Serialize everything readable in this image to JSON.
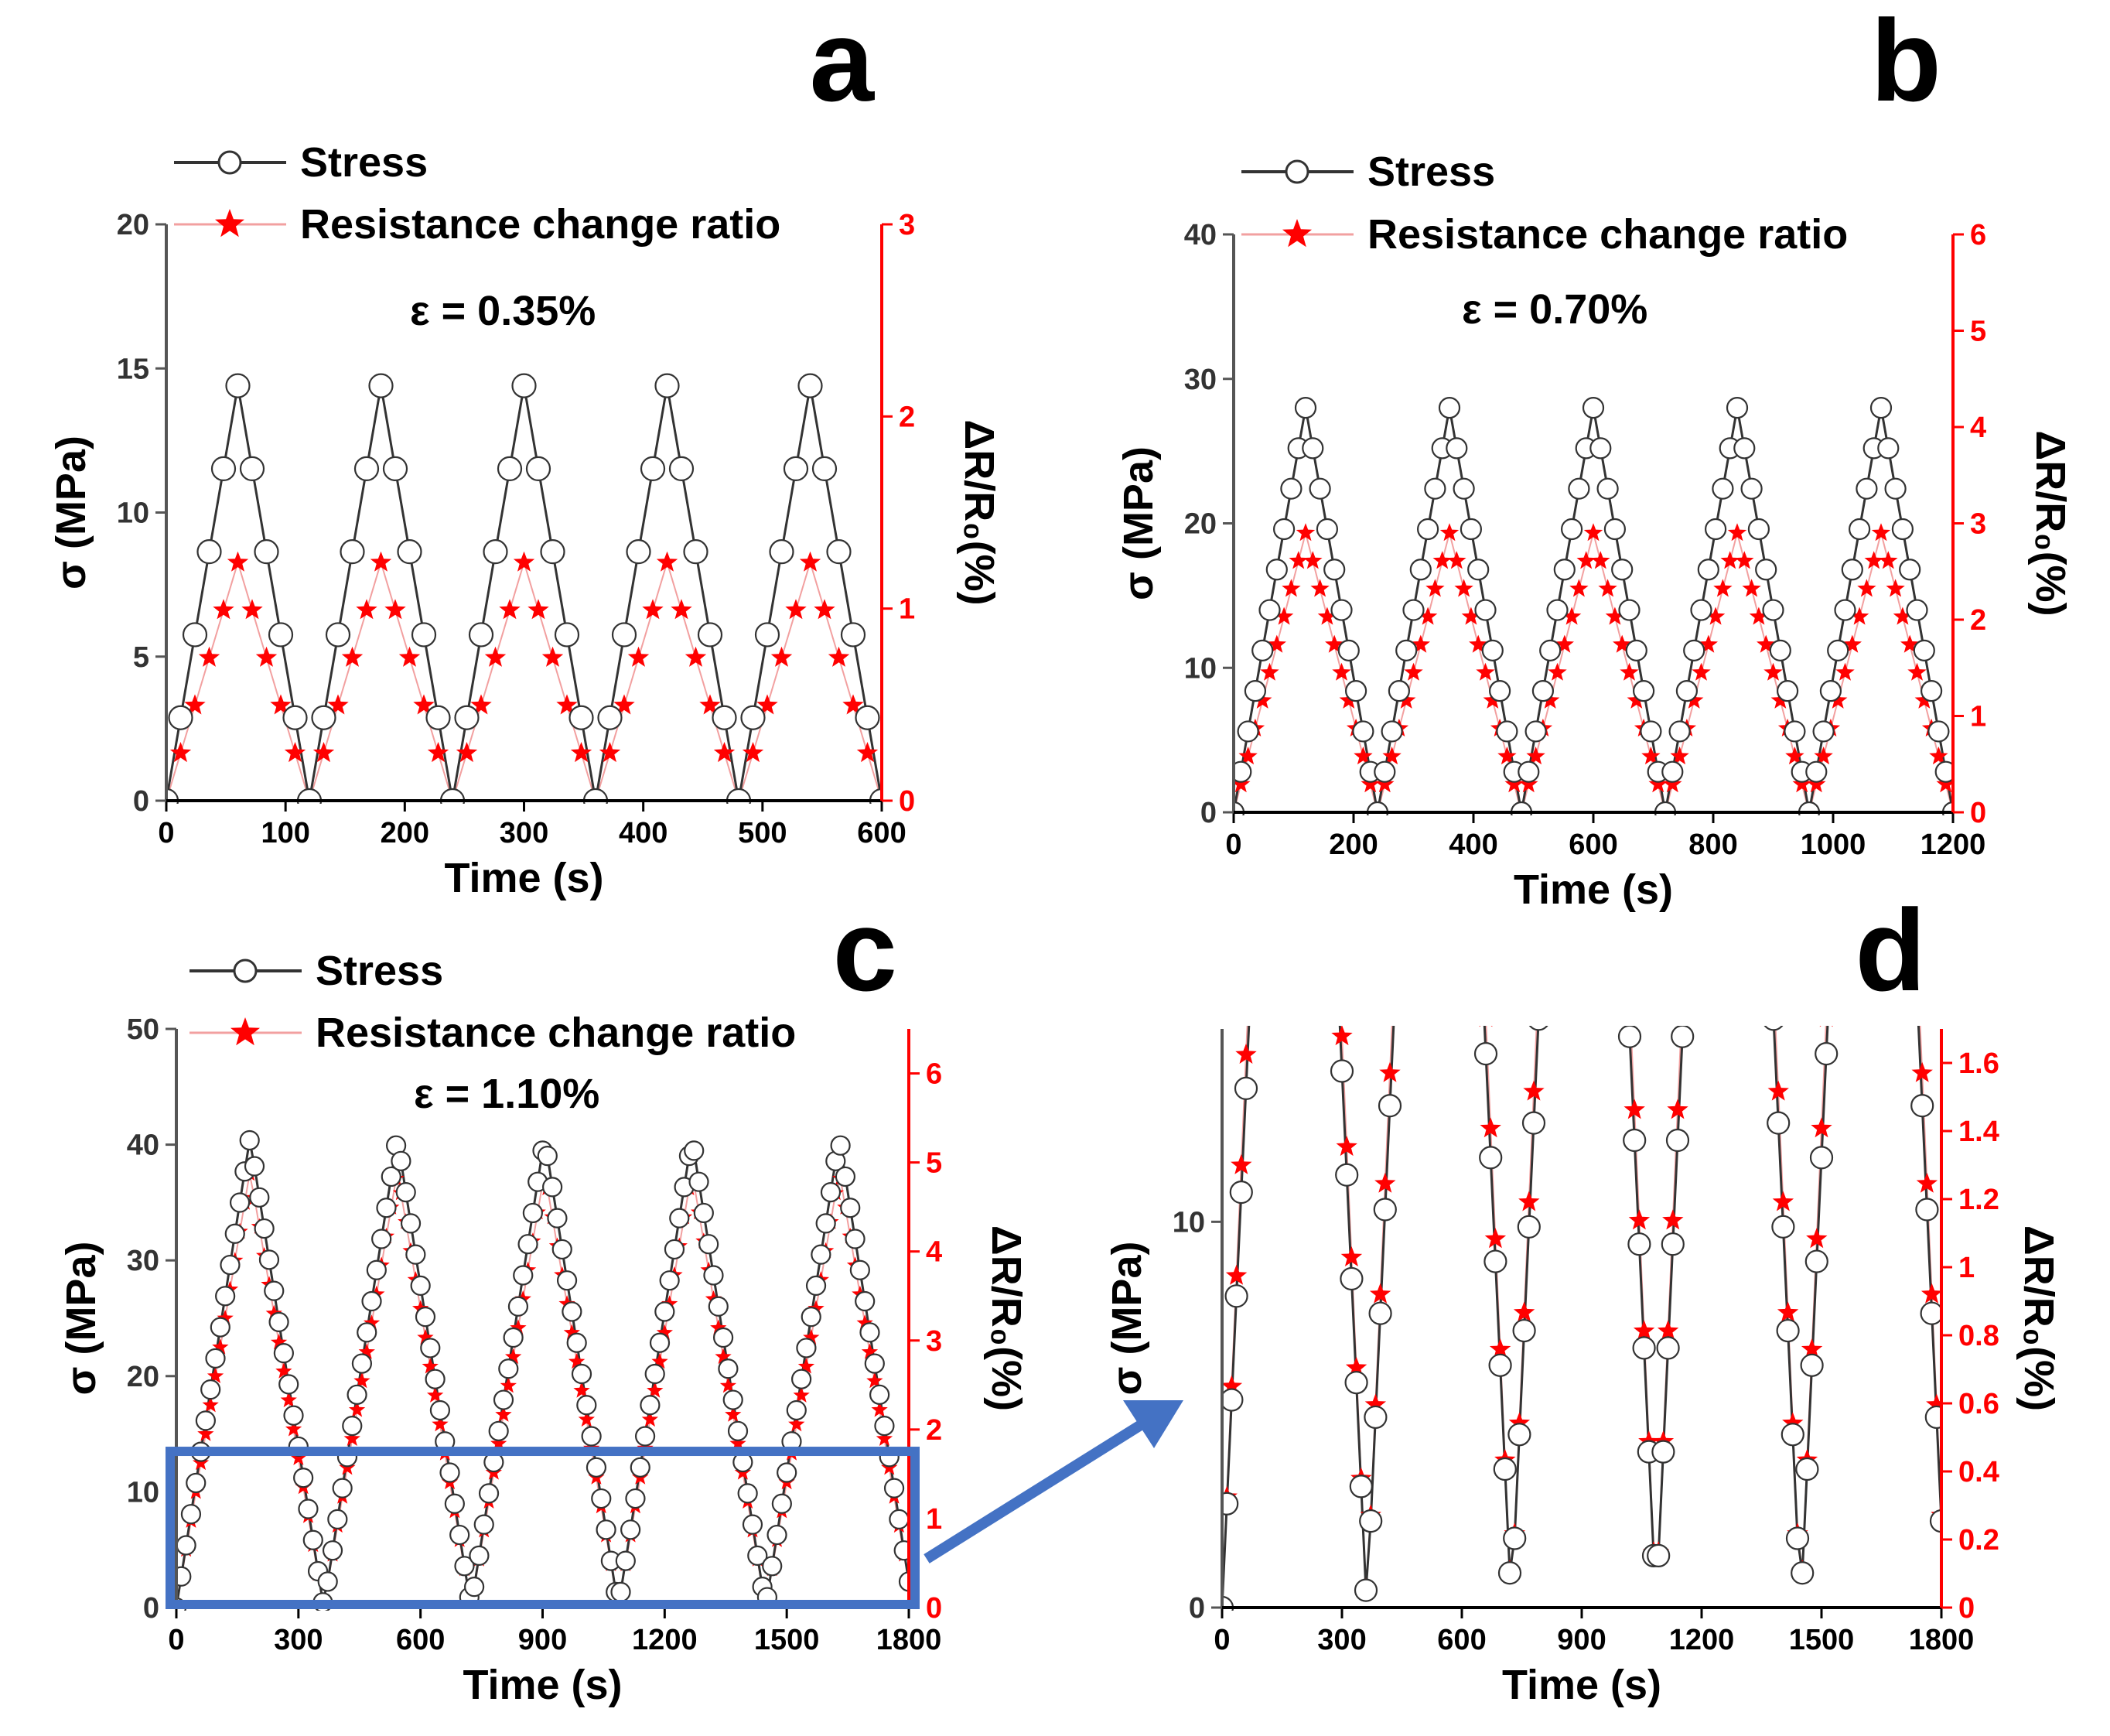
{
  "figure": {
    "arrow_color": "#4472c4",
    "stress_color": "#333333",
    "resistance_color": "#ff0000"
  },
  "chart_data": [
    {
      "panel": "a",
      "type": "line",
      "legend": [
        "Stress",
        "Resistance change ratio"
      ],
      "annotation": "ε = 0.35%",
      "xlabel": "Time (s)",
      "ylabel": "σ (MPa)",
      "y2label": "ΔR/R₀(%)",
      "xlim": [
        0,
        600
      ],
      "ylim": [
        0,
        20
      ],
      "y2lim": [
        0,
        3
      ],
      "xticks": [
        0,
        100,
        200,
        300,
        400,
        500,
        600
      ],
      "yticks": [
        0,
        5,
        10,
        15,
        20
      ],
      "y2ticks": [
        0,
        1,
        2,
        3
      ],
      "cycles": 5,
      "period": 120,
      "start": 0,
      "stress_peak": 14.4,
      "resistance_peak": 1.24,
      "sample_step": 12
    },
    {
      "panel": "b",
      "type": "line",
      "legend": [
        "Stress",
        "Resistance change ratio"
      ],
      "annotation": "ε = 0.70%",
      "xlabel": "Time (s)",
      "ylabel": "σ (MPa)",
      "y2label": "ΔR/R₀(%)",
      "xlim": [
        0,
        1200
      ],
      "ylim": [
        0,
        40
      ],
      "y2lim": [
        0,
        6
      ],
      "xticks": [
        0,
        200,
        400,
        600,
        800,
        1000,
        1200
      ],
      "yticks": [
        0,
        10,
        20,
        30,
        40
      ],
      "y2ticks": [
        0,
        1,
        2,
        3,
        4,
        5,
        6
      ],
      "cycles": 5,
      "period": 240,
      "start": 0,
      "stress_peak": 28.0,
      "resistance_peak": 2.9,
      "sample_step": 12
    },
    {
      "panel": "c",
      "type": "line",
      "legend": [
        "Stress",
        "Resistance change ratio"
      ],
      "annotation": "ε = 1.10%",
      "xlabel": "Time (s)",
      "ylabel": "σ (MPa)",
      "y2label": "ΔR/R₀(%)",
      "xlim": [
        0,
        1800
      ],
      "ylim": [
        0,
        50
      ],
      "y2lim": [
        0,
        6.5
      ],
      "xticks": [
        0,
        300,
        600,
        900,
        1200,
        1500,
        1800
      ],
      "yticks": [
        0,
        10,
        20,
        30,
        40,
        50
      ],
      "y2ticks": [
        0,
        1,
        2,
        3,
        4,
        5,
        6
      ],
      "cycles": 5,
      "period": 362,
      "start": 0,
      "stress_peak": 40.6,
      "resistance_peak": 4.9,
      "sample_step": 12,
      "zoom_box": {
        "x": [
          0,
          1800
        ],
        "y": [
          0,
          13.5
        ]
      }
    },
    {
      "panel": "d",
      "type": "line",
      "xlabel": "Time (s)",
      "ylabel": "σ (MPa)",
      "y2label": "ΔR/R₀(%)",
      "xlim": [
        0,
        1800
      ],
      "ylim": [
        0,
        15
      ],
      "y2lim": [
        0,
        1.7
      ],
      "xticks": [
        0,
        300,
        600,
        900,
        1200,
        1500,
        1800
      ],
      "yticks": [
        0,
        10
      ],
      "y2ticks": [
        0.0,
        0.2,
        0.4,
        0.6,
        0.8,
        1.0,
        1.2,
        1.4,
        1.6
      ],
      "cycles": 5,
      "period": 362,
      "start": 0,
      "stress_peak": 40.6,
      "resistance_peak": 4.9,
      "sample_step": 12
    }
  ]
}
